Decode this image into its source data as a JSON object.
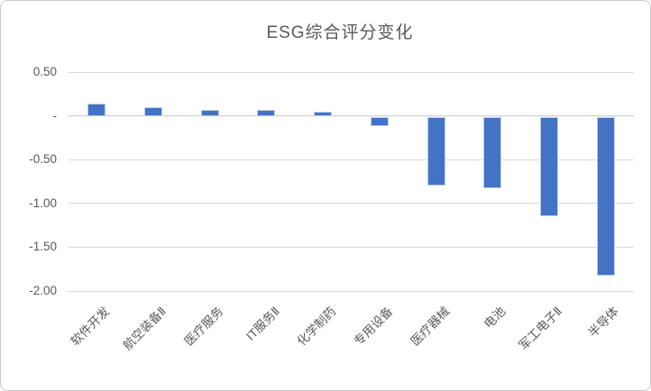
{
  "chart_card": {
    "title": "ESG综合评分变化"
  },
  "chart_data": {
    "type": "bar",
    "title": "ESG综合评分变化",
    "categories": [
      "软件开发",
      "航空装备Ⅱ",
      "医疗服务",
      "IT服务Ⅱ",
      "化学制药",
      "专用设备",
      "医疗器械",
      "电池",
      "军工电子Ⅱ",
      "半导体"
    ],
    "values": [
      0.14,
      0.1,
      0.07,
      0.07,
      0.05,
      -0.11,
      -0.79,
      -0.82,
      -1.14,
      -1.82
    ],
    "xlabel": "",
    "ylabel": "",
    "ylim": [
      -2.0,
      0.5
    ],
    "y_ticks": [
      {
        "label": "0.50",
        "value": 0.5
      },
      {
        "label": "-",
        "value": 0
      },
      {
        "label": "-0.50",
        "value": -0.5
      },
      {
        "label": "-1.00",
        "value": -1.0
      },
      {
        "label": "-1.50",
        "value": -1.5
      },
      {
        "label": "-2.00",
        "value": -2.0
      }
    ],
    "grid": true,
    "legend": false,
    "zero_tick_style": "accounting-dash",
    "colors": {
      "bar": "#4472C4",
      "bar_edge": "#BDD0EE",
      "gridline": "#D9D9D9",
      "axis_line": "#CFCFCF",
      "text": "#595959",
      "card_border": "#C9C9C9",
      "background": "#FFFFFF"
    }
  }
}
